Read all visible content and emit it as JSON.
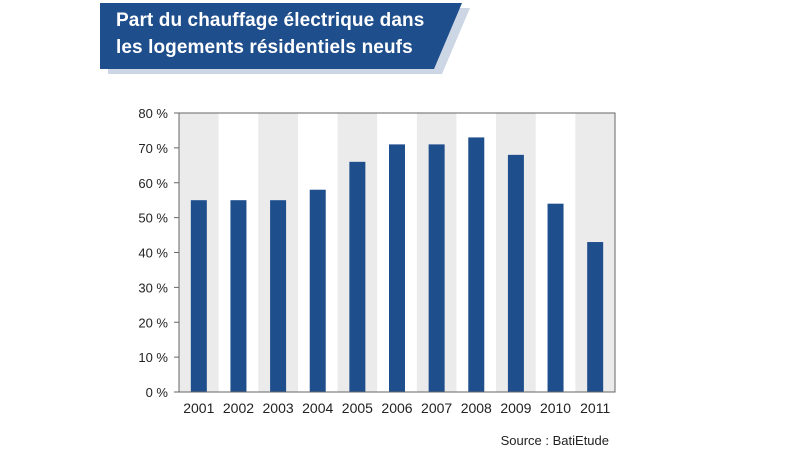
{
  "title": {
    "line1": "Part du chauffage électrique dans",
    "line2": "les logements résidentiels neufs"
  },
  "source": "Source : BatiEtude",
  "colors": {
    "banner": "#1f4e8c",
    "banner_shadow": "#cdd6e4",
    "bar": "#1f4e8c",
    "band": "#ebebeb",
    "axis": "#666666"
  },
  "chart_data": {
    "type": "bar",
    "title": "Part du chauffage électrique dans les logements résidentiels neufs",
    "xlabel": "",
    "ylabel": "",
    "categories": [
      "2001",
      "2002",
      "2003",
      "2004",
      "2005",
      "2006",
      "2007",
      "2008",
      "2009",
      "2010",
      "2011"
    ],
    "values": [
      55,
      55,
      55,
      58,
      66,
      71,
      71,
      73,
      68,
      54,
      43
    ],
    "unit": "%",
    "ylim": [
      0,
      80
    ],
    "yticks": [
      0,
      10,
      20,
      30,
      40,
      50,
      60,
      70,
      80
    ],
    "ytick_labels": [
      "0 %",
      "10 %",
      "20 %",
      "30 %",
      "40 %",
      "50 %",
      "60 %",
      "70 %",
      "80 %"
    ],
    "grid": false,
    "alternating_bands": true
  }
}
